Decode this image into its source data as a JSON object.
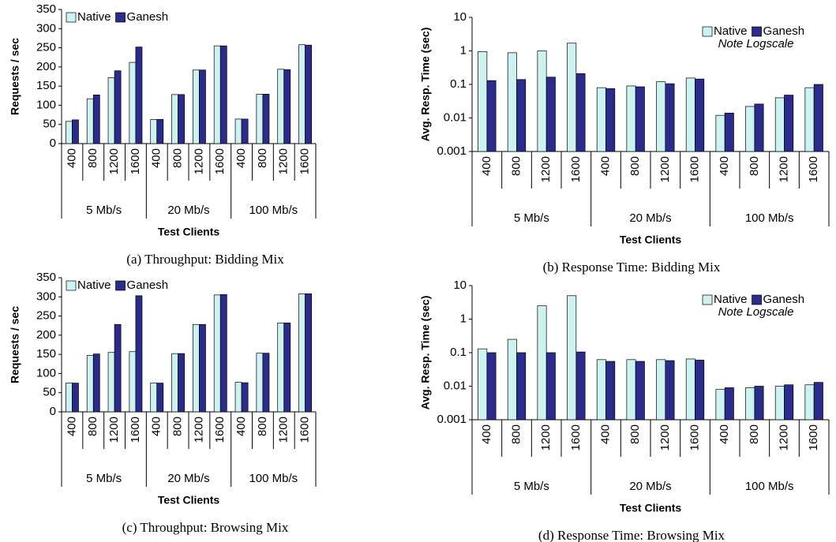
{
  "chart_data": [
    {
      "type": "bar",
      "title": "(a) Throughput: Bidding Mix",
      "xlabel": "Test Clients",
      "ylabel": "Requests / sec",
      "categories": [
        "400",
        "800",
        "1200",
        "1600",
        "400",
        "800",
        "1200",
        "1600",
        "400",
        "800",
        "1200",
        "1600"
      ],
      "groups": [
        "5 Mb/s",
        "20 Mb/s",
        "100 Mb/s"
      ],
      "series": [
        {
          "name": "Native",
          "color": "#ccf2f2",
          "values": [
            58,
            117,
            172,
            212,
            63,
            128,
            192,
            255,
            64,
            129,
            194,
            258
          ]
        },
        {
          "name": "Ganesh",
          "color": "#2b2b8c",
          "values": [
            62,
            127,
            190,
            252,
            63,
            128,
            192,
            255,
            64,
            129,
            193,
            257
          ]
        }
      ],
      "ylim": [
        0,
        350
      ],
      "yticks": [
        0,
        50,
        100,
        150,
        200,
        250,
        300,
        350
      ],
      "log_scale": false,
      "legend": "upper left"
    },
    {
      "type": "bar",
      "title": "(b) Response Time: Bidding Mix",
      "xlabel": "Test Clients",
      "ylabel": "Avg. Resp. Time (sec)",
      "annotation": "Note Logscale",
      "categories": [
        "400",
        "800",
        "1200",
        "1600",
        "400",
        "800",
        "1200",
        "1600",
        "400",
        "800",
        "1200",
        "1600"
      ],
      "groups": [
        "5 Mb/s",
        "20 Mb/s",
        "100 Mb/s"
      ],
      "series": [
        {
          "name": "Native",
          "color": "#ccf2f2",
          "values": [
            0.95,
            0.88,
            1.0,
            1.7,
            0.08,
            0.09,
            0.12,
            0.155,
            0.012,
            0.022,
            0.04,
            0.08
          ]
        },
        {
          "name": "Ganesh",
          "color": "#2b2b8c",
          "values": [
            0.13,
            0.14,
            0.165,
            0.21,
            0.075,
            0.085,
            0.105,
            0.145,
            0.014,
            0.026,
            0.048,
            0.1
          ]
        }
      ],
      "ylim": [
        0.001,
        10
      ],
      "yticks": [
        0.001,
        0.01,
        0.1,
        1,
        10
      ],
      "log_scale": true,
      "legend": "upper right"
    },
    {
      "type": "bar",
      "title": "(c) Throughput: Browsing Mix",
      "xlabel": "Test Clients",
      "ylabel": "Requests / sec",
      "categories": [
        "400",
        "800",
        "1200",
        "1600",
        "400",
        "800",
        "1200",
        "1600",
        "400",
        "800",
        "1200",
        "1600"
      ],
      "groups": [
        "5 Mb/s",
        "20 Mb/s",
        "100 Mb/s"
      ],
      "series": [
        {
          "name": "Native",
          "color": "#ccf2f2",
          "values": [
            75,
            147,
            155,
            157,
            75,
            152,
            228,
            305,
            77,
            153,
            232,
            308
          ]
        },
        {
          "name": "Ganesh",
          "color": "#2b2b8c",
          "values": [
            75,
            151,
            228,
            303,
            75,
            152,
            228,
            306,
            76,
            153,
            232,
            308
          ]
        }
      ],
      "ylim": [
        0,
        350
      ],
      "yticks": [
        0,
        50,
        100,
        150,
        200,
        250,
        300,
        350
      ],
      "log_scale": false,
      "legend": "upper left"
    },
    {
      "type": "bar",
      "title": "(d) Response Time: Browsing Mix",
      "xlabel": "Test Clients",
      "ylabel": "Avg. Resp. Time (sec)",
      "annotation": "Note Logscale",
      "categories": [
        "400",
        "800",
        "1200",
        "1600",
        "400",
        "800",
        "1200",
        "1600",
        "400",
        "800",
        "1200",
        "1600"
      ],
      "groups": [
        "5 Mb/s",
        "20 Mb/s",
        "100 Mb/s"
      ],
      "series": [
        {
          "name": "Native",
          "color": "#ccf2f2",
          "values": [
            0.13,
            0.25,
            2.5,
            5,
            0.062,
            0.062,
            0.062,
            0.065,
            0.008,
            0.009,
            0.01,
            0.011
          ]
        },
        {
          "name": "Ganesh",
          "color": "#2b2b8c",
          "values": [
            0.1,
            0.1,
            0.1,
            0.105,
            0.055,
            0.055,
            0.058,
            0.06,
            0.009,
            0.01,
            0.011,
            0.013
          ]
        }
      ],
      "ylim": [
        0.001,
        10
      ],
      "yticks": [
        0.001,
        0.01,
        0.1,
        1,
        10
      ],
      "log_scale": true,
      "legend": "upper right"
    }
  ]
}
